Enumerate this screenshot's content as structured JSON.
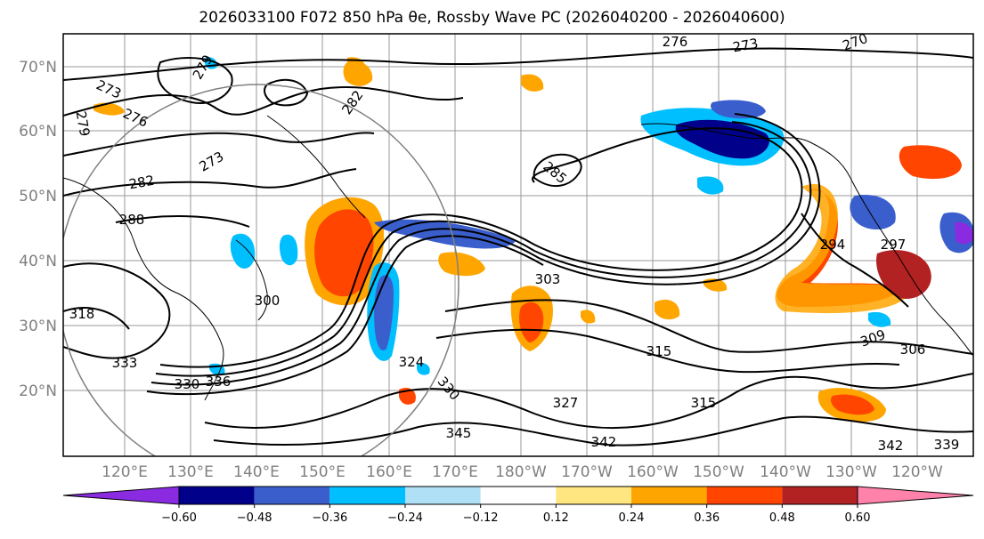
{
  "title": "2026033100 F072 850 hPa θe, Rossby Wave PC (2026040200 - 2026040600)",
  "map": {
    "lat_labels": [
      "70°N",
      "60°N",
      "50°N",
      "40°N",
      "30°N",
      "20°N"
    ],
    "lon_labels": [
      "120°E",
      "130°E",
      "140°E",
      "150°E",
      "160°E",
      "170°E",
      "180°W",
      "170°W",
      "160°W",
      "150°W",
      "140°W",
      "130°W",
      "120°W"
    ],
    "contour_labels": [
      "276",
      "273",
      "270",
      "279",
      "273",
      "276",
      "279",
      "282",
      "273",
      "282",
      "285",
      "288",
      "318",
      "300",
      "303",
      "309",
      "306",
      "315",
      "327",
      "315",
      "330",
      "345",
      "342",
      "342",
      "339",
      "294",
      "297",
      "333",
      "336",
      "324",
      "330"
    ]
  },
  "colorbar": {
    "ticks": [
      "−0.60",
      "−0.48",
      "−0.36",
      "−0.24",
      "−0.12",
      "0.12",
      "0.24",
      "0.36",
      "0.48",
      "0.60"
    ],
    "colors": [
      "#8a2be2",
      "#00008b",
      "#3a5fcd",
      "#00bfff",
      "#b0e0f6",
      "#ffffff",
      "#ffe680",
      "#ffa500",
      "#ff4500",
      "#b22222",
      "#ff82ab"
    ]
  }
}
